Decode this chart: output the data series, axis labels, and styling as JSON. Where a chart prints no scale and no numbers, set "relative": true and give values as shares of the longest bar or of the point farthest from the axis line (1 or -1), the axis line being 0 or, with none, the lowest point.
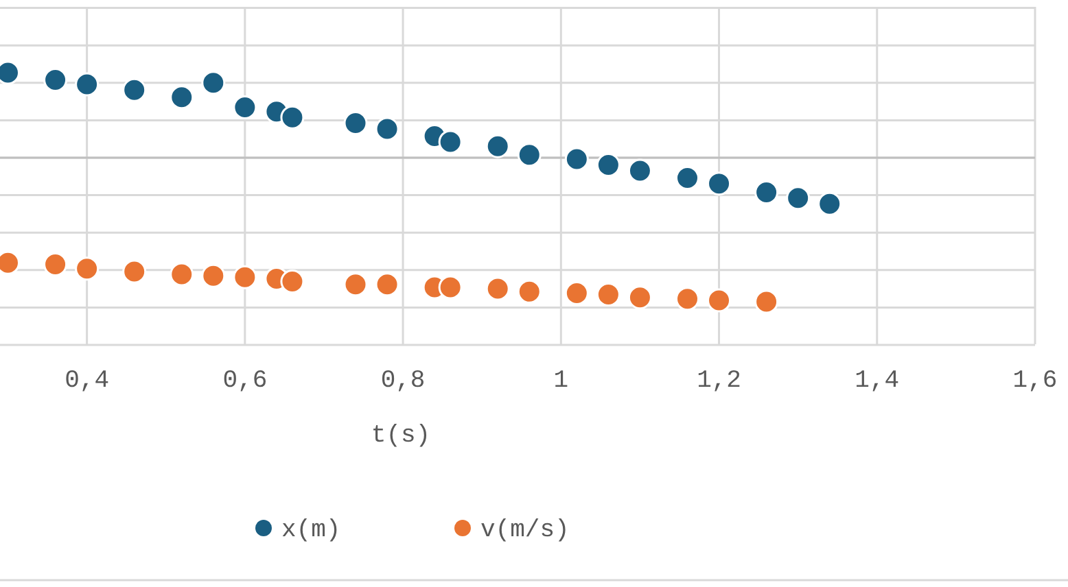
{
  "chart_data": {
    "type": "scatter",
    "xlabel": "t(s)",
    "relative": true,
    "marker": "circle",
    "grid": true,
    "legend": "bottom",
    "xlim": [
      0.29,
      1.6
    ],
    "xticks": [
      {
        "value": 0.4,
        "label": "0,4"
      },
      {
        "value": 0.6,
        "label": "0,6"
      },
      {
        "value": 0.8,
        "label": "0,8"
      },
      {
        "value": 1,
        "label": "1"
      },
      {
        "value": 1.2,
        "label": "1,2"
      },
      {
        "value": 1.4,
        "label": "1,4"
      },
      {
        "value": 1.6,
        "label": "1,6"
      }
    ],
    "series": [
      {
        "name": "x(m)",
        "color": "#1a5e82",
        "x": [
          0.3,
          0.36,
          0.4,
          0.46,
          0.52,
          0.56,
          0.6,
          0.64,
          0.66,
          0.74,
          0.78,
          0.84,
          0.86,
          0.92,
          0.96,
          1.02,
          1.06,
          1.1,
          1.16,
          1.2,
          1.26,
          1.3,
          1.34
        ],
        "values": [
          0.59,
          0.54,
          0.51,
          0.47,
          0.42,
          0.52,
          0.35,
          0.32,
          0.28,
          0.24,
          0.2,
          0.15,
          0.11,
          0.08,
          0.02,
          -0.01,
          -0.05,
          -0.09,
          -0.14,
          -0.18,
          -0.24,
          -0.28,
          -0.32
        ]
      },
      {
        "name": "v(m/s)",
        "color": "#e97432",
        "x": [
          0.3,
          0.36,
          0.4,
          0.46,
          0.52,
          0.56,
          0.6,
          0.64,
          0.66,
          0.74,
          0.78,
          0.84,
          0.86,
          0.92,
          0.96,
          1.02,
          1.06,
          1.1,
          1.16,
          1.2,
          1.26
        ],
        "values": [
          -0.73,
          -0.74,
          -0.77,
          -0.79,
          -0.81,
          -0.82,
          -0.83,
          -0.84,
          -0.86,
          -0.88,
          -0.88,
          -0.9,
          -0.9,
          -0.91,
          -0.93,
          -0.94,
          -0.95,
          -0.97,
          -0.98,
          -0.99,
          -1
        ]
      }
    ]
  }
}
